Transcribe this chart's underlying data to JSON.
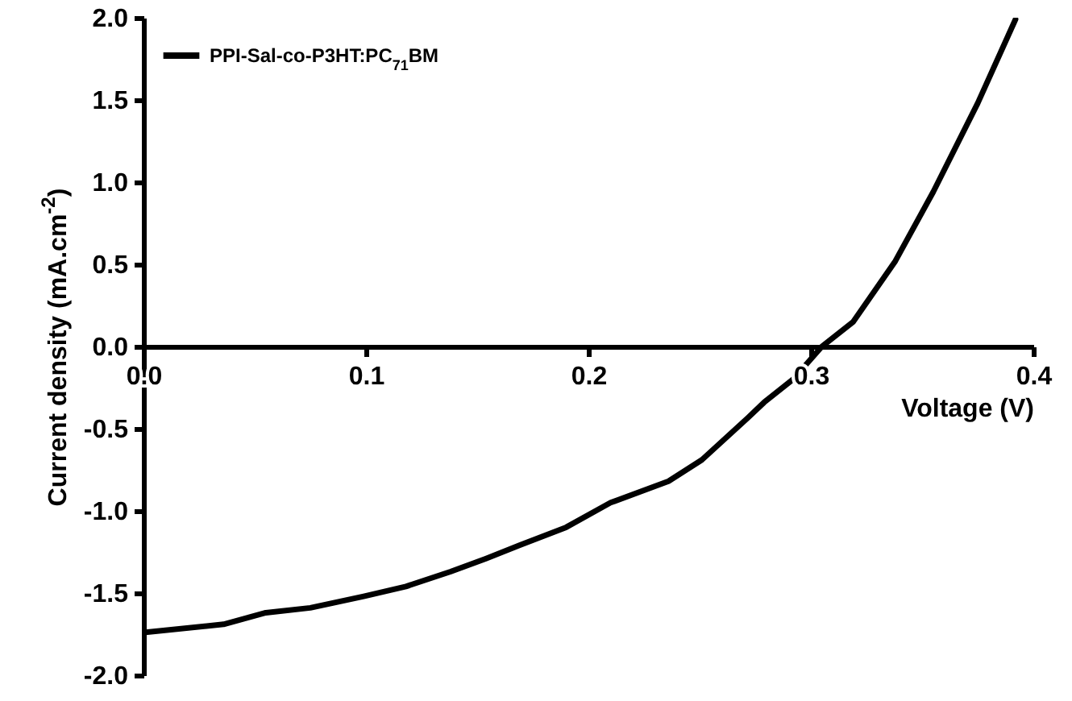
{
  "chart_data": {
    "type": "line",
    "xlabel": "Voltage (V)",
    "ylabel": "Current density (mA.cm$^{-2}$)",
    "x": [
      0,
      0.036,
      0.055,
      0.075,
      0.099,
      0.118,
      0.138,
      0.154,
      0.169,
      0.19,
      0.21,
      0.236,
      0.251,
      0.272,
      0.279,
      0.292,
      0.305,
      0.319,
      0.338,
      0.355,
      0.375,
      0.392
    ],
    "series": [
      {
        "name": "PPI-Sal-co-P3HT:PC$_{71}$BM",
        "color": "#000000",
        "values": [
          -1.74,
          -1.69,
          -1.62,
          -1.59,
          -1.52,
          -1.46,
          -1.37,
          -1.29,
          -1.21,
          -1.1,
          -0.95,
          -0.82,
          -0.69,
          -0.43,
          -0.34,
          -0.2,
          0,
          0.15,
          0.52,
          0.94,
          1.48,
          1.99
        ]
      }
    ],
    "xlim": [
      0,
      0.4
    ],
    "ylim": [
      -2,
      2
    ],
    "xticks": [
      {
        "value": 0,
        "label": "0.0"
      },
      0.1,
      0.2,
      0.3,
      0.4
    ],
    "yticks": [
      {
        "value": -2,
        "label": "-2.0"
      },
      {
        "value": -1.5,
        "label": "-1.5"
      },
      {
        "value": -1,
        "label": "-1.0"
      },
      {
        "value": -0.5,
        "label": "-0.5"
      },
      {
        "value": 0,
        "label": "0.0"
      },
      0.5,
      {
        "value": 1,
        "label": "1.0"
      },
      1.5,
      {
        "value": 2,
        "label": "2.0"
      }
    ],
    "legend": "top left",
    "line_style": "solid"
  }
}
